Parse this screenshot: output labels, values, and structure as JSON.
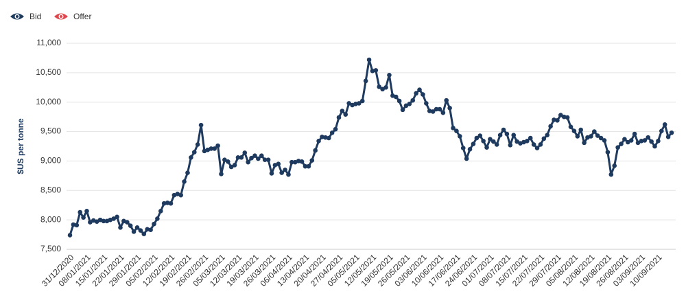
{
  "chart_data": {
    "type": "line",
    "y_label": "$US per tonne",
    "ylim": [
      7500,
      11000
    ],
    "yticks": [
      {
        "value": 7500,
        "label": "7,500"
      },
      {
        "value": 8000,
        "label": "8,000"
      },
      {
        "value": 8500,
        "label": "8,500"
      },
      {
        "value": 9000,
        "label": "9,000"
      },
      {
        "value": 9500,
        "label": "9,500"
      },
      {
        "value": 10000,
        "label": "10,000"
      },
      {
        "value": 10500,
        "label": "10,500"
      },
      {
        "value": 11000,
        "label": "11,000"
      }
    ],
    "grid": true,
    "legend": "top-left",
    "categories": [
      "31/12/2020",
      null,
      null,
      null,
      null,
      "08/01/2021",
      null,
      null,
      null,
      null,
      "15/01/2021",
      null,
      null,
      null,
      null,
      "22/01/2021",
      null,
      null,
      null,
      null,
      "29/01/2021",
      null,
      null,
      null,
      null,
      "05/02/2021",
      null,
      null,
      null,
      null,
      "12/02/2021",
      null,
      null,
      null,
      null,
      "19/02/2021",
      null,
      null,
      null,
      null,
      "26/02/2021",
      null,
      null,
      null,
      null,
      "05/03/2021",
      null,
      null,
      null,
      null,
      "12/03/2021",
      null,
      null,
      null,
      null,
      "19/03/2021",
      null,
      null,
      null,
      null,
      "26/03/2021",
      null,
      null,
      null,
      null,
      "06/04/2021",
      null,
      null,
      null,
      null,
      "13/04/2021",
      null,
      null,
      null,
      null,
      "20/04/2021",
      null,
      null,
      null,
      null,
      "27/04/2021",
      null,
      null,
      null,
      null,
      "05/05/2021",
      null,
      null,
      null,
      null,
      "12/05/2021",
      null,
      null,
      null,
      null,
      "19/05/2021",
      null,
      null,
      null,
      null,
      "26/05/2021",
      null,
      null,
      null,
      null,
      "03/06/2021",
      null,
      null,
      null,
      null,
      "10/06/2021",
      null,
      null,
      null,
      null,
      "17/06/2021",
      null,
      null,
      null,
      null,
      "24/06/2021",
      null,
      null,
      null,
      null,
      "01/07/2021",
      null,
      null,
      null,
      null,
      "08/07/2021",
      null,
      null,
      null,
      null,
      "15/07/2021",
      null,
      null,
      null,
      null,
      "22/07/2021",
      null,
      null,
      null,
      null,
      "29/07/2021",
      null,
      null,
      null,
      null,
      "05/08/2021",
      null,
      null,
      null,
      null,
      "12/08/2021",
      null,
      null,
      null,
      null,
      "19/08/2021",
      null,
      null,
      null,
      null,
      "26/08/2021",
      null,
      null,
      null,
      null,
      "03/09/2021",
      null,
      null,
      null,
      null,
      "10/09/2021",
      null,
      null,
      null,
      null
    ],
    "series": [
      {
        "name": "Bid",
        "color": "#1e3a5f",
        "values": [
          7740,
          7920,
          7910,
          8130,
          8040,
          8150,
          7960,
          7990,
          7970,
          8000,
          7980,
          7980,
          8000,
          8020,
          8050,
          7870,
          7980,
          7960,
          7900,
          7800,
          7870,
          7820,
          7760,
          7840,
          7830,
          7930,
          8020,
          8150,
          8280,
          8290,
          8280,
          8420,
          8440,
          8420,
          8650,
          8800,
          9060,
          9150,
          9280,
          9610,
          9170,
          9190,
          9210,
          9210,
          9260,
          8780,
          9020,
          8990,
          8900,
          8930,
          9060,
          9060,
          9140,
          8980,
          9050,
          9090,
          9040,
          9090,
          9020,
          9020,
          8790,
          8930,
          8950,
          8800,
          8850,
          8770,
          8980,
          8980,
          9000,
          8990,
          8910,
          8910,
          9010,
          9180,
          9340,
          9410,
          9400,
          9390,
          9480,
          9540,
          9740,
          9850,
          9790,
          9980,
          9950,
          9970,
          9980,
          10020,
          10360,
          10720,
          10530,
          10540,
          10260,
          10220,
          10250,
          10460,
          10110,
          10090,
          10020,
          9870,
          9940,
          9970,
          10030,
          10150,
          10210,
          10130,
          9980,
          9850,
          9840,
          9880,
          9880,
          9820,
          10030,
          9900,
          9560,
          9510,
          9420,
          9220,
          9040,
          9200,
          9290,
          9390,
          9430,
          9340,
          9230,
          9370,
          9330,
          9280,
          9440,
          9530,
          9460,
          9270,
          9440,
          9330,
          9300,
          9320,
          9340,
          9390,
          9280,
          9220,
          9280,
          9380,
          9440,
          9590,
          9700,
          9690,
          9780,
          9750,
          9740,
          9580,
          9510,
          9420,
          9530,
          9310,
          9400,
          9420,
          9500,
          9430,
          9390,
          9350,
          9150,
          8770,
          8920,
          9230,
          9290,
          9370,
          9320,
          9350,
          9460,
          9310,
          9340,
          9350,
          9400,
          9330,
          9250,
          9340,
          9510,
          9620,
          9410,
          9480
        ]
      }
    ],
    "inactive_series": [
      {
        "name": "Offer",
        "color": "#e0474c"
      }
    ]
  }
}
